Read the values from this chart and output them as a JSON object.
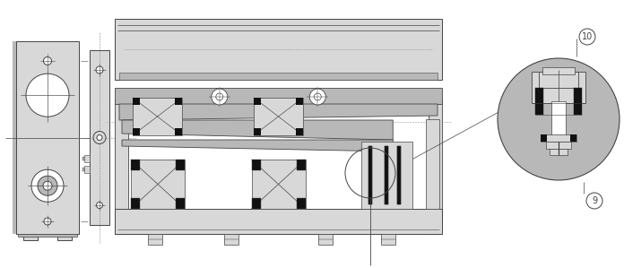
{
  "bg_color": "#ffffff",
  "lc": "#444444",
  "lc_dark": "#222222",
  "gray_light": "#d8d8d8",
  "gray_mid": "#b8b8b8",
  "gray_dark": "#888888",
  "gray_fill": "#c0c0c0",
  "black": "#111111",
  "white": "#ffffff",
  "lw": 0.6,
  "label_10": "10",
  "label_9": "9"
}
